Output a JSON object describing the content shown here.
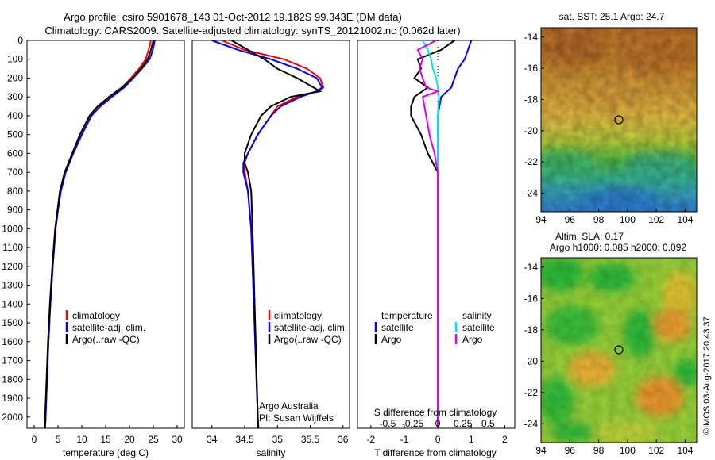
{
  "figure": {
    "title_line1": "Argo profile: csiro 5901678_143 01-Oct-2012 19.182S 99.343E (DM data)",
    "title_line2": "Climatology: CARS2009. Satellite-adjusted climatology: synTS_20121002.nc (0.062d later)",
    "credit_institution": "Argo Australia",
    "credit_pi": "PI: Susan Wijffels",
    "stamp": "©IMOS 03-Aug-2017 20:43:37"
  },
  "colors": {
    "climatology": "#ff0000",
    "satellite": "#0000ff",
    "argo": "#000000",
    "salinity_satellite": "#00e5e5",
    "salinity_argo": "#e000e0"
  },
  "chart_data": [
    {
      "type": "line",
      "panel": "temperature",
      "xlabel": "temperature (deg C)",
      "ylabel": "",
      "xlim": [
        -1.5,
        31.5
      ],
      "ylim": [
        2060,
        0
      ],
      "xticks": [
        0,
        5,
        10,
        15,
        20,
        25,
        30
      ],
      "yticks": [
        0,
        100,
        200,
        300,
        400,
        500,
        600,
        700,
        800,
        900,
        1000,
        1100,
        1200,
        1300,
        1400,
        1500,
        1600,
        1700,
        1800,
        1900,
        2000
      ],
      "legend": [
        "climatology",
        "satellite-adj. clim.",
        "Argo(..raw -QC)"
      ],
      "legend_position": "center",
      "series": [
        {
          "name": "climatology",
          "color": "#ff0000",
          "depth": [
            0,
            50,
            100,
            150,
            200,
            250,
            300,
            350,
            400,
            500,
            600,
            700,
            800,
            900,
            1000,
            1200,
            1400,
            1600,
            1800,
            2000,
            2060
          ],
          "values": [
            24.5,
            24.0,
            23.4,
            22.0,
            20.3,
            18.5,
            16.2,
            13.8,
            12.0,
            10.0,
            8.2,
            6.6,
            5.6,
            5.0,
            4.5,
            3.9,
            3.4,
            3.0,
            2.7,
            2.4,
            2.3
          ]
        },
        {
          "name": "satellite-adj. clim.",
          "color": "#0000ff",
          "depth": [
            0,
            50,
            100,
            150,
            200,
            250,
            300,
            350,
            400,
            500,
            600,
            700,
            800,
            900,
            1000,
            1200,
            1400,
            1600,
            1800,
            2000,
            2060
          ],
          "values": [
            25.3,
            24.9,
            24.2,
            22.6,
            20.8,
            18.9,
            16.3,
            13.9,
            12.0,
            10.0,
            8.2,
            6.6,
            5.6,
            5.0,
            4.5,
            3.9,
            3.4,
            3.0,
            2.7,
            2.4,
            2.3
          ]
        },
        {
          "name": "Argo(..raw -QC)",
          "color": "#000000",
          "depth": [
            0,
            50,
            100,
            150,
            200,
            250,
            300,
            350,
            400,
            500,
            600,
            700,
            800,
            900,
            1000,
            1200,
            1400,
            1600,
            1800,
            2000,
            2060
          ],
          "values": [
            25.0,
            24.5,
            23.8,
            22.4,
            20.6,
            18.4,
            15.7,
            13.3,
            11.6,
            9.6,
            8.0,
            6.4,
            5.4,
            4.9,
            4.4,
            3.8,
            3.3,
            2.9,
            2.6,
            2.3,
            2.2
          ]
        }
      ]
    },
    {
      "type": "line",
      "panel": "salinity",
      "xlabel": "salinity",
      "xlim": [
        33.7,
        36.1
      ],
      "ylim": [
        2060,
        0
      ],
      "xticks": [
        34,
        34.5,
        35,
        35.5,
        36
      ],
      "legend": [
        "climatology",
        "satellite-adj. clim.",
        "Argo(..raw -QC)"
      ],
      "legend_position": "center",
      "series": [
        {
          "name": "climatology",
          "color": "#ff0000",
          "depth": [
            0,
            50,
            100,
            150,
            200,
            250,
            270,
            300,
            350,
            400,
            500,
            600,
            650,
            700,
            800,
            1000,
            1500,
            2000,
            2060
          ],
          "values": [
            34.15,
            34.5,
            35.1,
            35.45,
            35.65,
            35.7,
            35.6,
            35.3,
            35.0,
            34.9,
            34.7,
            34.55,
            34.5,
            34.5,
            34.55,
            34.6,
            34.65,
            34.7,
            34.71
          ]
        },
        {
          "name": "satellite-adj. clim.",
          "color": "#0000ff",
          "depth": [
            0,
            50,
            100,
            150,
            200,
            250,
            270,
            300,
            350,
            400,
            500,
            600,
            650,
            700,
            800,
            1000,
            1500,
            2000,
            2060
          ],
          "values": [
            34.0,
            34.4,
            34.9,
            35.3,
            35.6,
            35.68,
            35.6,
            35.35,
            35.05,
            34.9,
            34.7,
            34.55,
            34.48,
            34.48,
            34.55,
            34.6,
            34.65,
            34.7,
            34.71
          ]
        },
        {
          "name": "Argo(..raw -QC)",
          "color": "#000000",
          "depth": [
            0,
            50,
            100,
            150,
            200,
            250,
            270,
            300,
            350,
            400,
            500,
            600,
            650,
            700,
            800,
            1000,
            1500,
            2000,
            2060
          ],
          "values": [
            34.3,
            34.55,
            34.8,
            35.0,
            35.3,
            35.55,
            35.65,
            35.2,
            34.9,
            34.75,
            34.6,
            34.5,
            34.5,
            34.55,
            34.6,
            34.62,
            34.66,
            34.7,
            34.7
          ]
        }
      ]
    },
    {
      "type": "line",
      "panel": "difference",
      "xlabel_top": "S difference from climatology",
      "xlabel_bottom": "T difference from climatology",
      "xlim": [
        -2.4,
        2.3
      ],
      "ylim": [
        2060,
        0
      ],
      "xticks_t": [
        -2,
        -1,
        0,
        1,
        2
      ],
      "xticks_s_labels": [
        "-0.5",
        "-0.25",
        "0",
        "0.25",
        "0.5"
      ],
      "xticks_s_positions": [
        -1.5,
        -0.75,
        0,
        0.75,
        1.5
      ],
      "legend_temperature": {
        "title": "temperature",
        "items": [
          "satellite",
          "Argo"
        ]
      },
      "legend_salinity": {
        "title": "salinity",
        "items": [
          "satellite",
          "Argo"
        ]
      },
      "legend_position": "center",
      "series": [
        {
          "name": "satellite",
          "group": "temperature",
          "color": "#0000ff",
          "depth": [
            0,
            50,
            100,
            150,
            200,
            250,
            300,
            400,
            600,
            800,
            1000,
            2060
          ],
          "values": [
            1.0,
            0.9,
            0.8,
            0.6,
            0.5,
            0.4,
            0.1,
            0.0,
            0.0,
            0.0,
            0.0,
            0.0
          ]
        },
        {
          "name": "Argo",
          "group": "temperature",
          "color": "#000000",
          "depth": [
            0,
            50,
            100,
            150,
            200,
            250,
            300,
            350,
            400,
            500,
            600,
            700,
            800,
            1000,
            2060
          ],
          "values": [
            0.5,
            0.1,
            -0.6,
            -0.5,
            -0.7,
            -0.3,
            -0.7,
            -0.8,
            -0.8,
            -0.5,
            -0.3,
            0.0,
            0.0,
            0.0,
            0.0
          ]
        },
        {
          "name": "satellite",
          "group": "salinity",
          "color": "#00e5e5",
          "depth": [
            0,
            50,
            100,
            150,
            200,
            250,
            300,
            400,
            600,
            800,
            1000,
            2060
          ],
          "values": [
            -0.45,
            -0.3,
            -0.2,
            -0.15,
            -0.05,
            0.0,
            0.03,
            0.0,
            0.0,
            0.0,
            0.0,
            0.0
          ]
        },
        {
          "name": "Argo",
          "group": "salinity",
          "color": "#e000e0",
          "depth": [
            0,
            50,
            100,
            150,
            200,
            250,
            270,
            300,
            400,
            500,
            600,
            700,
            800,
            1000,
            2060
          ],
          "values": [
            -0.05,
            -0.6,
            -0.45,
            -0.55,
            -0.45,
            -0.35,
            0.0,
            -0.45,
            -0.35,
            -0.25,
            -0.1,
            0.0,
            0.0,
            0.0,
            0.0
          ]
        }
      ]
    },
    {
      "type": "heatmap",
      "panel": "sst_map",
      "title": "sat. SST: 25.1 Argo: 24.7",
      "xticks": [
        94,
        96,
        98,
        100,
        102,
        104
      ],
      "yticks": [
        -14,
        -16,
        -18,
        -20,
        -22,
        -24
      ],
      "xlim": [
        94,
        104.8
      ],
      "ylim": [
        -25.2,
        -13.4
      ],
      "marker": {
        "lon": 99.343,
        "lat": -19.182
      }
    },
    {
      "type": "heatmap",
      "panel": "sla_map",
      "title_line1": "Altim. SLA: 0.17",
      "title_line2": "Argo h1000: 0.085 h2000: 0.092",
      "xticks": [
        94,
        96,
        98,
        100,
        102,
        104
      ],
      "yticks": [
        -14,
        -16,
        -18,
        -20,
        -22,
        -24
      ],
      "xlim": [
        94,
        104.8
      ],
      "ylim": [
        -25.2,
        -13.4
      ],
      "marker": {
        "lon": 99.343,
        "lat": -19.182
      }
    }
  ]
}
